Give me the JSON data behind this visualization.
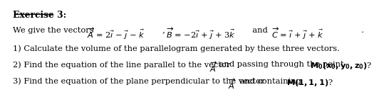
{
  "background_color": "#ffffff",
  "text_color": "#000000",
  "title": "Exercise 3:",
  "row0": "We give the vectors  $\\overrightarrow{A} = 2\\vec{\\imath} - \\vec{\\jmath} - \\vec{k}$   ,    $\\overrightarrow{B} = -2\\vec{\\imath} + \\vec{\\jmath} + 3\\vec{k}$    and    $\\overrightarrow{C} = \\vec{\\imath} + \\vec{\\jmath} + \\vec{k}$   .",
  "row1": "\\textbf{1)} Calculate the volume of the parallelogram generated by these three vectors.",
  "row2": "\\textbf{2)} Find the equation of the line parallel to the vector  $\\overrightarrow{A}$  and passing through the point  $\\mathbf{M_0(x_0,y_0,z_0)}$?",
  "row3": "\\textbf{3)} Find the equation of the plane perpendicular to the vector  $\\overrightarrow{A}$   and containing  $\\mathbf{M(1,1,1)}$?",
  "fs_title": 8.8,
  "fs_body": 8.2
}
